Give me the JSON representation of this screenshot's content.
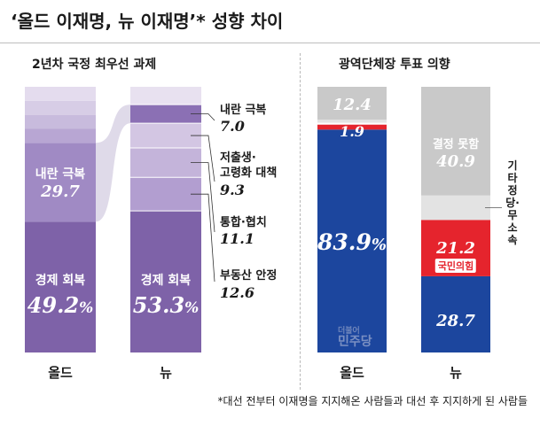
{
  "title": "‘올드 이재명, 뉴 이재명’* 성향 차이",
  "footnote": "*대선 전부터 이재명을 지지해온 사람들과 대선 후 지지하게 된 사람들",
  "colors": {
    "purple_base": "#7e62a8",
    "purple_light": "#d9cde6",
    "blue": "#1c469e",
    "red": "#e5242d",
    "gray": "#c9c9c9",
    "gray_light": "#e3e3e3",
    "connector": "#dcd6e7"
  },
  "chart_data": [
    {
      "type": "stacked-bar",
      "title": "2년차 국정 최우선 과제",
      "categories": [
        "올드",
        "뉴"
      ],
      "series": [
        {
          "name": "경제 회복",
          "values": [
            49.2,
            53.3
          ]
        },
        {
          "name": "부동산 안정",
          "values": [
            null,
            12.6
          ]
        },
        {
          "name": "통합·협치",
          "values": [
            null,
            11.1
          ]
        },
        {
          "name": "저출생·고령화 대책",
          "values": [
            null,
            9.3
          ]
        },
        {
          "name": "내란 극복",
          "values": [
            29.7,
            7.0
          ]
        }
      ],
      "display": {
        "old": {
          "econ": "49.2",
          "naeran": "29.7"
        },
        "new": {
          "econ": "53.3",
          "naeran": "7.0",
          "housing": "12.6",
          "tonghap": "11.1",
          "birth": "9.3"
        }
      },
      "labels": {
        "econ": "경제 회복",
        "naeran": "내란 극복",
        "birth_line1": "저출생·",
        "birth_line2": "고령화 대책",
        "tonghap": "통합·협치",
        "housing": "부동산 안정",
        "pct": "%"
      }
    },
    {
      "type": "stacked-bar",
      "title": "광역단체장 투표 의향",
      "categories": [
        "올드",
        "뉴"
      ],
      "series": [
        {
          "name": "민주당",
          "values": [
            83.9,
            28.7
          ]
        },
        {
          "name": "국민의힘",
          "values": [
            1.9,
            21.2
          ]
        },
        {
          "name": "기타 정당·무소속",
          "values": [
            1.8,
            9.2
          ]
        },
        {
          "name": "결정 못함",
          "values": [
            12.4,
            40.9
          ]
        }
      ],
      "display": {
        "old": {
          "dem": "83.9",
          "ppp": "1.9",
          "undecided": "12.4"
        },
        "new": {
          "dem": "28.7",
          "ppp": "21.2",
          "undecided": "40.9"
        }
      },
      "labels": {
        "undecided": "결정 못함",
        "other": "기타 정당·무소속",
        "ppp_logo": "국민의힘",
        "dem_logo": "민주당",
        "dem_logo_small": "더불어",
        "pct": "%"
      }
    }
  ]
}
